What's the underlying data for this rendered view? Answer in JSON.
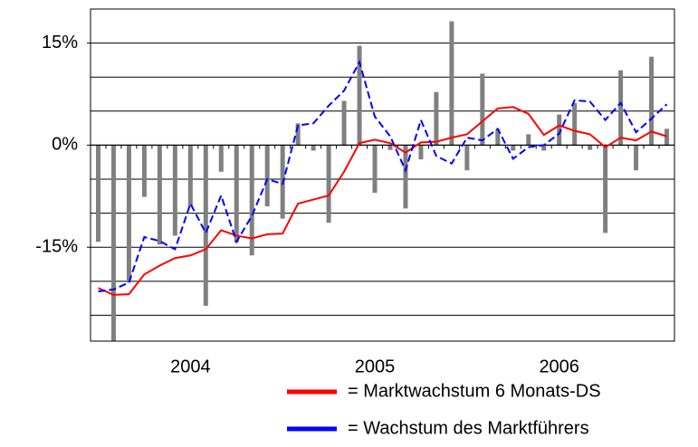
{
  "chart_data": {
    "type": "bar_line",
    "categories": [
      null,
      null,
      null,
      null,
      null,
      null,
      "2004",
      null,
      null,
      null,
      null,
      null,
      null,
      null,
      null,
      null,
      null,
      null,
      "2005",
      null,
      null,
      null,
      null,
      null,
      null,
      null,
      null,
      null,
      null,
      null,
      "2006",
      null,
      null,
      null,
      null,
      null,
      null,
      null
    ],
    "bars": {
      "color": "#808080",
      "values": [
        -14.2,
        -29,
        -20.2,
        -7.6,
        -14.6,
        -13.3,
        -9.0,
        -23.6,
        -3.9,
        -14.3,
        -16.2,
        -9.0,
        -10.8,
        3.2,
        -0.8,
        -11.4,
        6.5,
        14.6,
        -7.0,
        -0.7,
        -9.3,
        -2.1,
        7.8,
        18.2,
        -3.7,
        10.5,
        2.3,
        -0.8,
        1.6,
        -0.8,
        4.5,
        6.2,
        -0.7,
        -12.9,
        11.0,
        -3.7,
        13.0,
        2.4
      ]
    },
    "series": [
      {
        "name": "= Marktwachstum 6 Monats-DS",
        "color": "#ff0000",
        "dashed": false,
        "values": [
          -21.0,
          -22.0,
          -21.9,
          -19.0,
          -17.7,
          -16.6,
          -16.2,
          -15.3,
          -12.5,
          -13.3,
          -13.7,
          -13.1,
          -13.0,
          -8.6,
          -8.0,
          -7.4,
          -3.9,
          0.3,
          0.8,
          0.3,
          -1.1,
          0.4,
          0.5,
          1.1,
          1.6,
          3.5,
          5.4,
          5.6,
          4.6,
          1.5,
          2.9,
          2.1,
          1.6,
          -0.3,
          1.1,
          0.7,
          2.0,
          1.3
        ]
      },
      {
        "name": "= Wachstum des Marktführers",
        "color": "#0000ff",
        "dashed": true,
        "values": [
          -21.5,
          -21.2,
          -20.2,
          -13.5,
          -14.1,
          -15.3,
          -8.6,
          -12.9,
          -7.4,
          -14.2,
          -10.4,
          -5.0,
          -5.7,
          2.9,
          3.2,
          5.8,
          8.0,
          12.2,
          4.2,
          1.3,
          -3.7,
          3.7,
          -1.6,
          -2.7,
          1.1,
          0.7,
          2.4,
          -2.0,
          -0.3,
          0,
          1.7,
          6.6,
          6.4,
          3.7,
          6.2,
          1.9,
          3.9,
          6.0
        ]
      }
    ],
    "ylim": [
      -28.8,
      20
    ],
    "yticks": [
      {
        "value": 15,
        "label": "15%"
      },
      {
        "value": 0,
        "label": "0%"
      },
      {
        "value": -15,
        "label": "-15%"
      }
    ],
    "ygrid": [
      -25,
      -20,
      -15,
      -10,
      -5,
      5,
      10,
      15
    ]
  }
}
